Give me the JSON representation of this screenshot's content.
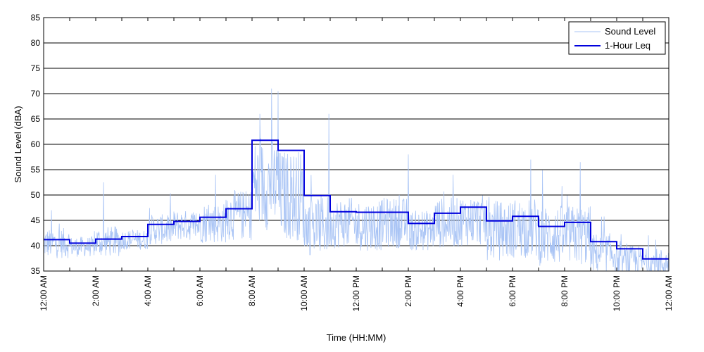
{
  "chart_data": {
    "type": "line",
    "xlabel": "Time (HH:MM)",
    "ylabel": "Sound Level (dBA)",
    "ylim": [
      35,
      85
    ],
    "xlim_hours": [
      0,
      24
    ],
    "grid": "horizontal",
    "legend_position": "top-right",
    "y_ticks": [
      "35",
      "40",
      "45",
      "50",
      "55",
      "60",
      "65",
      "70",
      "75",
      "80",
      "85"
    ],
    "x_ticks": [
      {
        "hour": 0,
        "label": "12:00 AM"
      },
      {
        "hour": 2,
        "label": "2:00 AM"
      },
      {
        "hour": 4,
        "label": "4:00 AM"
      },
      {
        "hour": 6,
        "label": "6:00 AM"
      },
      {
        "hour": 8,
        "label": "8:00 AM"
      },
      {
        "hour": 10,
        "label": "10:00 AM"
      },
      {
        "hour": 12,
        "label": "12:00 PM"
      },
      {
        "hour": 14,
        "label": "2:00 PM"
      },
      {
        "hour": 16,
        "label": "4:00 PM"
      },
      {
        "hour": 18,
        "label": "6:00 PM"
      },
      {
        "hour": 20,
        "label": "8:00 PM"
      },
      {
        "hour": 22,
        "label": "10:00 PM"
      },
      {
        "hour": 24,
        "label": "12:00 AM"
      }
    ],
    "series": [
      {
        "name": "Sound Level",
        "color": "#a9c4f5",
        "hourly_mean": [
          40.5,
          39.8,
          40.8,
          41.2,
          43.2,
          44.0,
          44.5,
          46.0,
          52.0,
          50.0,
          44.0,
          44.5,
          44.0,
          44.5,
          43.0,
          44.5,
          45.0,
          43.0,
          43.5,
          42.0,
          42.0,
          38.5,
          37.0,
          36.5
        ],
        "hourly_spread": [
          3,
          2,
          3,
          2,
          3,
          3,
          4,
          5,
          9,
          9,
          6,
          5,
          5,
          5,
          4,
          5,
          5,
          6,
          6,
          6,
          6,
          4,
          3,
          3
        ],
        "peaks": [
          {
            "hour": 0.3,
            "value": 47
          },
          {
            "hour": 2.3,
            "value": 52.5
          },
          {
            "hour": 6.6,
            "value": 54
          },
          {
            "hour": 8.3,
            "value": 66
          },
          {
            "hour": 8.75,
            "value": 71
          },
          {
            "hour": 9.0,
            "value": 70.5
          },
          {
            "hour": 10.95,
            "value": 66
          },
          {
            "hour": 14.0,
            "value": 58
          },
          {
            "hour": 18.7,
            "value": 57
          },
          {
            "hour": 20.6,
            "value": 56.5
          }
        ]
      },
      {
        "name": "1-Hour Leq",
        "color": "#0000dd",
        "hourly_values": [
          41.2,
          40.5,
          41.3,
          41.8,
          44.2,
          44.8,
          45.6,
          47.3,
          60.8,
          58.8,
          49.9,
          46.7,
          46.6,
          46.6,
          44.4,
          46.4,
          47.6,
          44.9,
          45.8,
          43.8,
          44.6,
          40.8,
          39.4,
          37.4
        ]
      }
    ]
  }
}
